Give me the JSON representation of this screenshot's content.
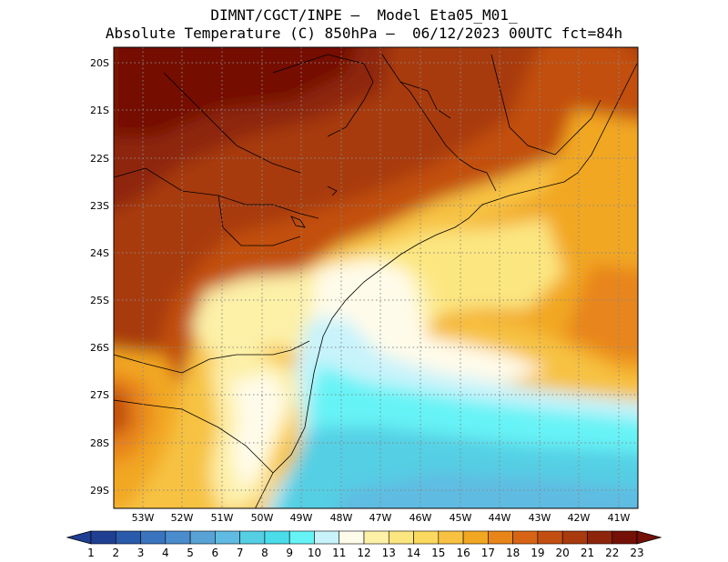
{
  "header": {
    "title_line1": "DIMNT/CGCT/INPE –  Model Eta05_M01_",
    "title_line2": "Absolute Temperature (C) 850hPa –  06/12/2023 00UTC fct=84h"
  },
  "map": {
    "latitude_labels": [
      "20S",
      "21S",
      "22S",
      "23S",
      "24S",
      "25S",
      "26S",
      "27S",
      "28S",
      "29S"
    ],
    "longitude_labels": [
      "53W",
      "52W",
      "51W",
      "50W",
      "49W",
      "48W",
      "47W",
      "46W",
      "45W",
      "44W",
      "43W",
      "42W",
      "41W"
    ]
  },
  "colorbar": {
    "labels": [
      "1",
      "2",
      "3",
      "4",
      "5",
      "6",
      "7",
      "8",
      "9",
      "10",
      "11",
      "12",
      "13",
      "14",
      "15",
      "16",
      "17",
      "18",
      "19",
      "20",
      "21",
      "22",
      "23"
    ],
    "colors": [
      "#1f3f93",
      "#2a5aaa",
      "#3a74bf",
      "#4b8ccd",
      "#58a2d6",
      "#5fbbe2",
      "#55cfe4",
      "#4bdcea",
      "#66f3f6",
      "#c8f3fb",
      "#fffbea",
      "#fdf0a7",
      "#fce680",
      "#fbd85f",
      "#f7c242",
      "#f2a722",
      "#e8851a",
      "#d76414",
      "#c24f11",
      "#a83a0e",
      "#8e250b",
      "#741006"
    ]
  }
}
